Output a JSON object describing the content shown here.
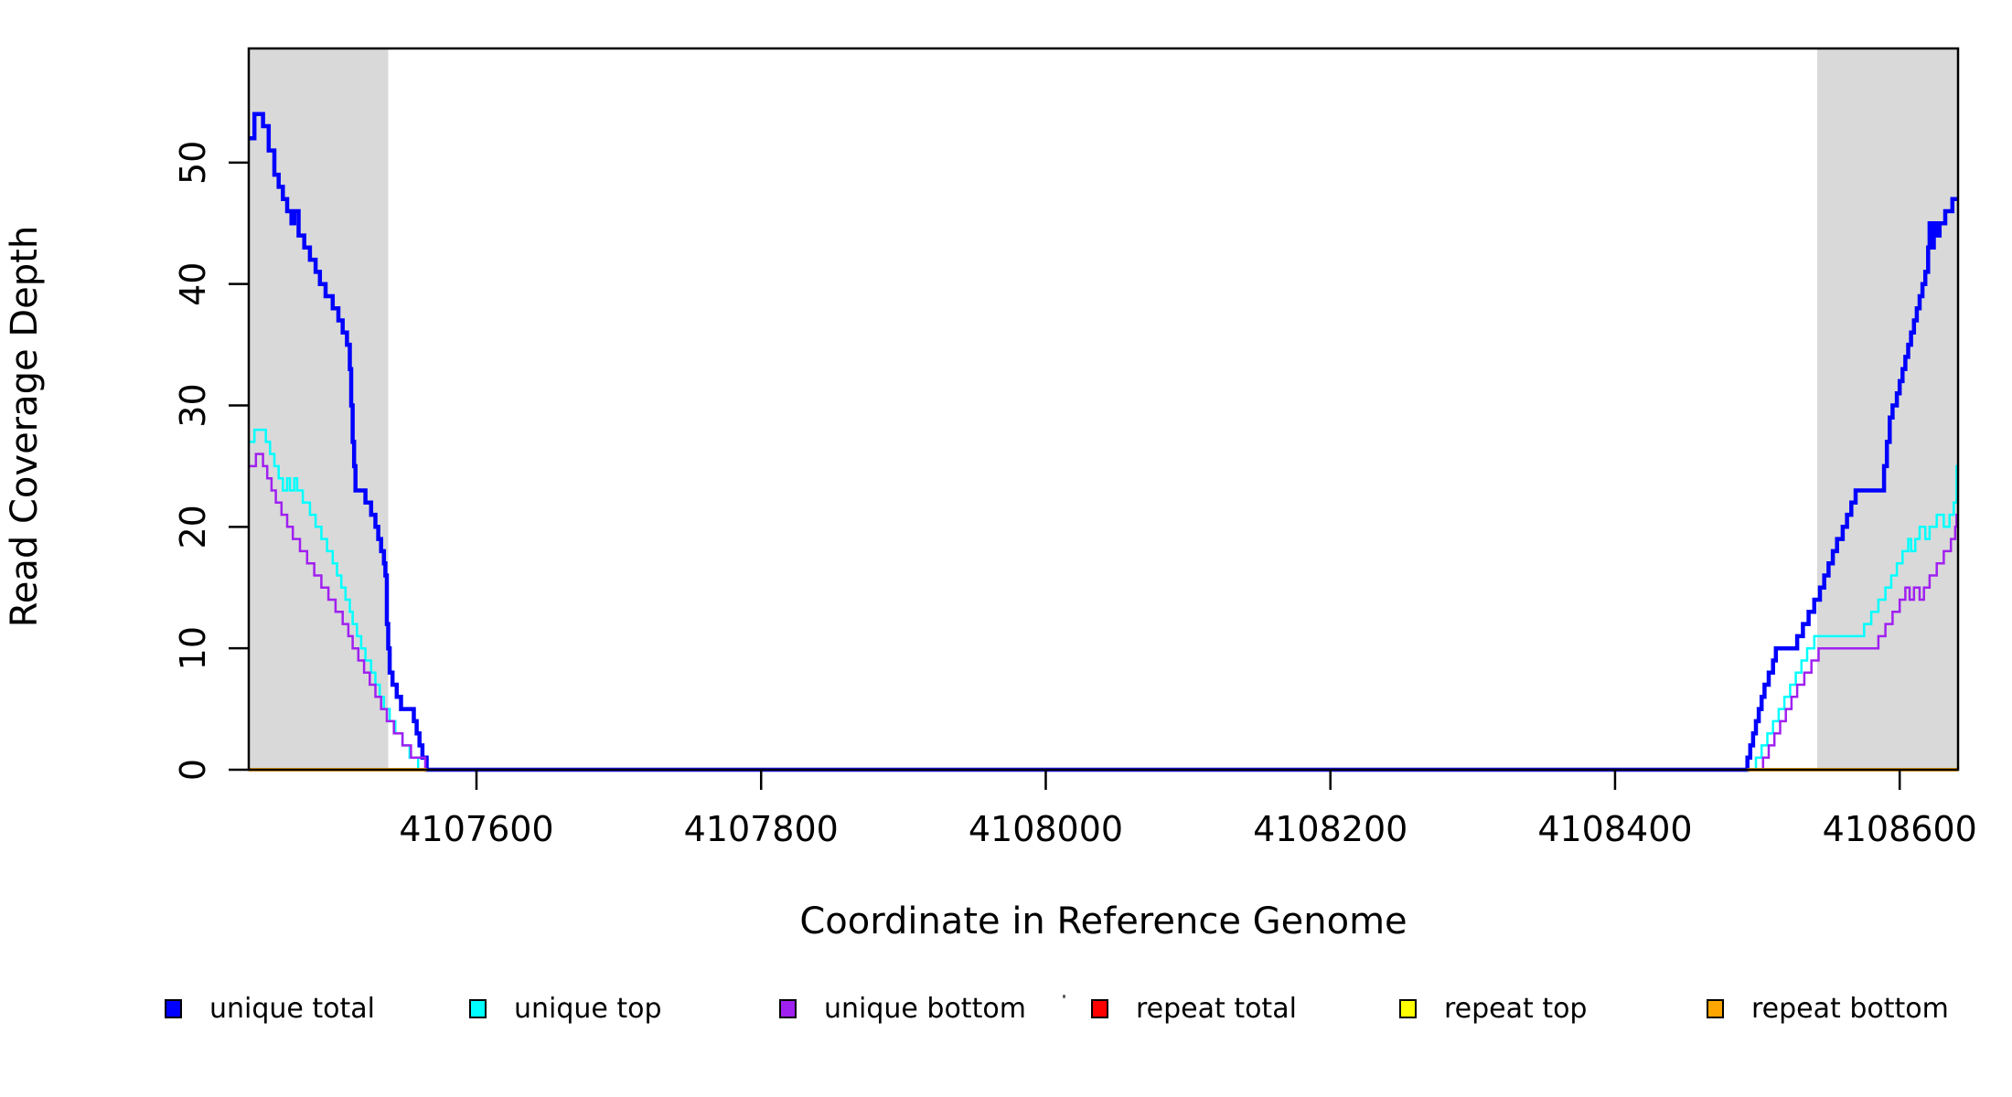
{
  "chart_data": {
    "type": "line",
    "step": true,
    "title": "",
    "xlabel": "Coordinate in Reference Genome",
    "ylabel": "Read Coverage Depth",
    "xlim": [
      4107440,
      4108641
    ],
    "ylim": [
      0,
      59.4
    ],
    "grid": false,
    "x_ticks": [
      {
        "value": 4107600,
        "label": "4107600"
      },
      {
        "value": 4107800,
        "label": "4107800"
      },
      {
        "value": 4108000,
        "label": "4108000"
      },
      {
        "value": 4108200,
        "label": "4108200"
      },
      {
        "value": 4108400,
        "label": "4108400"
      },
      {
        "value": 4108600,
        "label": "4108600"
      }
    ],
    "y_ticks": [
      {
        "value": 0,
        "label": "0"
      },
      {
        "value": 10,
        "label": "10"
      },
      {
        "value": 20,
        "label": "20"
      },
      {
        "value": 30,
        "label": "30"
      },
      {
        "value": 40,
        "label": "40"
      },
      {
        "value": 50,
        "label": "50"
      }
    ],
    "highlight_regions": [
      {
        "name": "repeat-region-left",
        "x0": 4107440,
        "x1": 4107538,
        "color": "#D9D9D9"
      },
      {
        "name": "repeat-region-right",
        "x0": 4108542,
        "x1": 4108641,
        "color": "#D9D9D9"
      }
    ],
    "series": [
      {
        "name": "unique total",
        "color": "#0000FF",
        "width": 4.5,
        "segments": [
          [
            [
              4107440,
              52
            ],
            [
              4107444,
              54
            ],
            [
              4107450,
              53
            ],
            [
              4107454,
              51
            ],
            [
              4107458,
              49
            ],
            [
              4107461,
              48
            ],
            [
              4107464,
              47
            ],
            [
              4107467,
              46
            ],
            [
              4107470,
              45
            ],
            [
              4107472,
              46
            ],
            [
              4107475,
              44
            ],
            [
              4107479,
              43
            ],
            [
              4107483,
              42
            ],
            [
              4107487,
              41
            ],
            [
              4107490,
              40
            ],
            [
              4107494,
              39
            ],
            [
              4107499,
              38
            ],
            [
              4107503,
              37
            ],
            [
              4107506,
              36
            ],
            [
              4107509,
              35
            ],
            [
              4107511,
              33
            ],
            [
              4107512,
              30
            ],
            [
              4107513,
              27
            ],
            [
              4107514,
              25
            ],
            [
              4107515,
              23
            ],
            [
              4107522,
              22
            ],
            [
              4107526,
              21
            ],
            [
              4107529,
              20
            ],
            [
              4107531,
              19
            ],
            [
              4107533,
              18
            ],
            [
              4107535,
              17
            ],
            [
              4107536,
              16
            ],
            [
              4107537,
              12
            ],
            [
              4107538,
              10
            ],
            [
              4107539,
              8
            ],
            [
              4107541,
              7
            ],
            [
              4107544,
              6
            ],
            [
              4107547,
              5
            ],
            [
              4107556,
              4
            ],
            [
              4107558,
              3
            ],
            [
              4107560,
              2
            ],
            [
              4107562,
              1
            ],
            [
              4107565,
              0
            ],
            [
              4108490,
              0
            ],
            [
              4108493,
              1
            ],
            [
              4108495,
              2
            ],
            [
              4108497,
              3
            ],
            [
              4108499,
              4
            ],
            [
              4108501,
              5
            ],
            [
              4108503,
              6
            ],
            [
              4108505,
              7
            ],
            [
              4108508,
              8
            ],
            [
              4108511,
              9
            ],
            [
              4108513,
              10
            ],
            [
              4108528,
              11
            ],
            [
              4108532,
              12
            ],
            [
              4108536,
              13
            ],
            [
              4108540,
              14
            ],
            [
              4108544,
              15
            ],
            [
              4108547,
              16
            ],
            [
              4108550,
              17
            ],
            [
              4108553,
              18
            ],
            [
              4108556,
              19
            ],
            [
              4108560,
              20
            ],
            [
              4108563,
              21
            ],
            [
              4108566,
              22
            ],
            [
              4108569,
              23
            ],
            [
              4108587,
              23
            ],
            [
              4108589,
              25
            ],
            [
              4108591,
              27
            ],
            [
              4108593,
              29
            ],
            [
              4108595,
              30
            ],
            [
              4108598,
              31
            ],
            [
              4108600,
              32
            ],
            [
              4108602,
              33
            ],
            [
              4108604,
              34
            ],
            [
              4108606,
              35
            ],
            [
              4108608,
              36
            ],
            [
              4108610,
              37
            ],
            [
              4108612,
              38
            ],
            [
              4108614,
              39
            ],
            [
              4108616,
              40
            ],
            [
              4108618,
              41
            ],
            [
              4108620,
              43
            ],
            [
              4108621,
              45
            ],
            [
              4108622,
              43
            ],
            [
              4108624,
              45
            ],
            [
              4108626,
              44
            ],
            [
              4108628,
              45
            ],
            [
              4108632,
              46
            ],
            [
              4108637,
              47
            ],
            [
              4108641,
              47
            ]
          ]
        ]
      },
      {
        "name": "unique top",
        "color": "#00FFFF",
        "width": 2.5,
        "segments": [
          [
            [
              4107440,
              27
            ],
            [
              4107444,
              28
            ],
            [
              4107452,
              27
            ],
            [
              4107455,
              26
            ],
            [
              4107458,
              25
            ],
            [
              4107461,
              24
            ],
            [
              4107464,
              23
            ],
            [
              4107467,
              24
            ],
            [
              4107469,
              23
            ],
            [
              4107472,
              24
            ],
            [
              4107474,
              23
            ],
            [
              4107478,
              22
            ],
            [
              4107483,
              21
            ],
            [
              4107487,
              20
            ],
            [
              4107491,
              19
            ],
            [
              4107495,
              18
            ],
            [
              4107499,
              17
            ],
            [
              4107502,
              16
            ],
            [
              4107505,
              15
            ],
            [
              4107508,
              14
            ],
            [
              4107511,
              13
            ],
            [
              4107513,
              12
            ],
            [
              4107516,
              11
            ],
            [
              4107519,
              10
            ],
            [
              4107522,
              9
            ],
            [
              4107526,
              8
            ],
            [
              4107529,
              7
            ],
            [
              4107532,
              6
            ],
            [
              4107535,
              5
            ],
            [
              4107539,
              4
            ],
            [
              4107543,
              3
            ],
            [
              4107548,
              2
            ],
            [
              4107553,
              1
            ],
            [
              4107559,
              0
            ],
            [
              4108495,
              0
            ],
            [
              4108499,
              1
            ],
            [
              4108503,
              2
            ],
            [
              4108507,
              3
            ],
            [
              4108511,
              4
            ],
            [
              4108515,
              5
            ],
            [
              4108519,
              6
            ],
            [
              4108523,
              7
            ],
            [
              4108527,
              8
            ],
            [
              4108531,
              9
            ],
            [
              4108535,
              10
            ],
            [
              4108540,
              11
            ],
            [
              4108575,
              12
            ],
            [
              4108580,
              13
            ],
            [
              4108585,
              14
            ],
            [
              4108590,
              15
            ],
            [
              4108594,
              16
            ],
            [
              4108598,
              17
            ],
            [
              4108602,
              18
            ],
            [
              4108606,
              19
            ],
            [
              4108608,
              18
            ],
            [
              4108611,
              19
            ],
            [
              4108614,
              20
            ],
            [
              4108618,
              19
            ],
            [
              4108621,
              20
            ],
            [
              4108626,
              21
            ],
            [
              4108631,
              20
            ],
            [
              4108635,
              21
            ],
            [
              4108638,
              22
            ],
            [
              4108640,
              25
            ],
            [
              4108641,
              25
            ]
          ]
        ]
      },
      {
        "name": "unique bottom",
        "color": "#A020F0",
        "width": 2.5,
        "segments": [
          [
            [
              4107440,
              25
            ],
            [
              4107445,
              26
            ],
            [
              4107450,
              25
            ],
            [
              4107453,
              24
            ],
            [
              4107456,
              23
            ],
            [
              4107459,
              22
            ],
            [
              4107463,
              21
            ],
            [
              4107467,
              20
            ],
            [
              4107471,
              19
            ],
            [
              4107476,
              18
            ],
            [
              4107481,
              17
            ],
            [
              4107486,
              16
            ],
            [
              4107491,
              15
            ],
            [
              4107496,
              14
            ],
            [
              4107501,
              13
            ],
            [
              4107506,
              12
            ],
            [
              4107510,
              11
            ],
            [
              4107513,
              10
            ],
            [
              4107517,
              9
            ],
            [
              4107521,
              8
            ],
            [
              4107525,
              7
            ],
            [
              4107529,
              6
            ],
            [
              4107533,
              5
            ],
            [
              4107537,
              4
            ],
            [
              4107542,
              3
            ],
            [
              4107548,
              2
            ],
            [
              4107554,
              1
            ],
            [
              4107564,
              0
            ],
            [
              4108500,
              0
            ],
            [
              4108504,
              1
            ],
            [
              4108508,
              2
            ],
            [
              4108512,
              3
            ],
            [
              4108516,
              4
            ],
            [
              4108520,
              5
            ],
            [
              4108524,
              6
            ],
            [
              4108528,
              7
            ],
            [
              4108533,
              8
            ],
            [
              4108538,
              9
            ],
            [
              4108543,
              10
            ],
            [
              4108585,
              11
            ],
            [
              4108590,
              12
            ],
            [
              4108595,
              13
            ],
            [
              4108600,
              14
            ],
            [
              4108604,
              15
            ],
            [
              4108607,
              14
            ],
            [
              4108610,
              15
            ],
            [
              4108614,
              14
            ],
            [
              4108617,
              15
            ],
            [
              4108621,
              16
            ],
            [
              4108626,
              17
            ],
            [
              4108631,
              18
            ],
            [
              4108636,
              19
            ],
            [
              4108639,
              20
            ],
            [
              4108640,
              21
            ],
            [
              4108641,
              21
            ]
          ]
        ]
      },
      {
        "name": "repeat total",
        "color": "#FF0000",
        "width": 3.5,
        "segments": [
          [
            [
              4107440,
              0
            ],
            [
              4107565,
              0
            ]
          ],
          [
            [
              4108493,
              0
            ],
            [
              4108641,
              0
            ]
          ]
        ]
      },
      {
        "name": "repeat top",
        "color": "#FFFF00",
        "width": 3.5,
        "segments": [
          [
            [
              4107440,
              0
            ],
            [
              4107565,
              0
            ]
          ],
          [
            [
              4108493,
              0
            ],
            [
              4108641,
              0
            ]
          ]
        ]
      },
      {
        "name": "repeat bottom",
        "color": "#FFA500",
        "width": 3.5,
        "segments": [
          [
            [
              4107440,
              0
            ],
            [
              4107565,
              0
            ]
          ],
          [
            [
              4108493,
              0
            ],
            [
              4108641,
              0
            ]
          ]
        ]
      }
    ],
    "legend_position": "bottom"
  },
  "legend": {
    "items": [
      {
        "label": "unique total",
        "color": "#0000FF"
      },
      {
        "label": "unique top",
        "color": "#00FFFF"
      },
      {
        "label": "unique bottom",
        "color": "#A020F0"
      },
      {
        "label": "repeat total",
        "color": "#FF0000"
      },
      {
        "label": "repeat top",
        "color": "#FFFF00"
      },
      {
        "label": "repeat bottom",
        "color": "#FFA500"
      }
    ]
  },
  "axis_color": "#000000",
  "background_color": "#FFFFFF"
}
